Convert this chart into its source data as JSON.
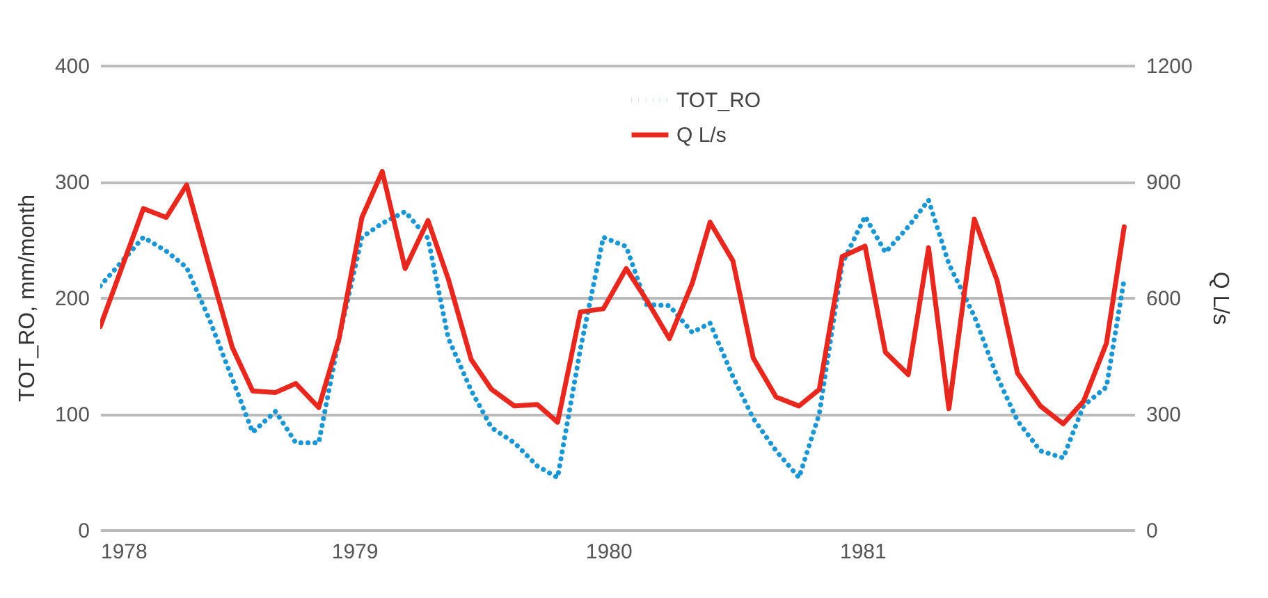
{
  "chart_data": {
    "type": "line",
    "xlim": [
      1978,
      1982.07
    ],
    "xticks": [
      1978,
      1979,
      1980,
      1981
    ],
    "ylim": [
      0,
      400
    ],
    "yticks": [
      0,
      100,
      200,
      300,
      400
    ],
    "y2lim": [
      0,
      1200
    ],
    "y2ticks": [
      0,
      300,
      600,
      900,
      1200
    ],
    "ylabel": "TOT_RO, mm/month",
    "y2label": "Q L/s",
    "grid": "y",
    "legend": "top",
    "series": [
      {
        "name": "TOT_RO",
        "color": "#1a96d4",
        "line_style": "dotted",
        "x": [
          1978.0,
          1978.17,
          1978.26,
          1978.34,
          1978.43,
          1978.52,
          1978.6,
          1978.69,
          1978.77,
          1978.86,
          1978.94,
          1979.03,
          1979.11,
          1979.2,
          1979.29,
          1979.37,
          1979.46,
          1979.54,
          1979.63,
          1979.72,
          1979.8,
          1979.89,
          1979.98,
          1980.07,
          1980.15,
          1980.24,
          1980.33,
          1980.4,
          1980.49,
          1980.57,
          1980.66,
          1980.75,
          1980.83,
          1980.92,
          1981.01,
          1981.09,
          1981.18,
          1981.26,
          1981.34,
          1981.44,
          1981.53,
          1981.61,
          1981.7,
          1981.79,
          1981.87,
          1981.96,
          1982.03
        ],
        "values": [
          210,
          252,
          240,
          226,
          181,
          130,
          84,
          102,
          75,
          75,
          165,
          252,
          264,
          274,
          251,
          165,
          120,
          88,
          75,
          55,
          45,
          156,
          252,
          244,
          194,
          193,
          170,
          178,
          132,
          96,
          68,
          45,
          100,
          229,
          270,
          239,
          261,
          284,
          229,
          184,
          132,
          94,
          68,
          62,
          107,
          123,
          216
        ]
      },
      {
        "name": "Q L/s",
        "color": "#e8281e",
        "line_style": "solid",
        "axis": "y2",
        "x": [
          1978.0,
          1978.17,
          1978.26,
          1978.34,
          1978.43,
          1978.52,
          1978.6,
          1978.69,
          1978.77,
          1978.86,
          1978.94,
          1979.03,
          1979.11,
          1979.2,
          1979.29,
          1979.37,
          1979.46,
          1979.54,
          1979.63,
          1979.72,
          1979.8,
          1979.89,
          1979.98,
          1980.07,
          1980.15,
          1980.24,
          1980.33,
          1980.4,
          1980.49,
          1980.57,
          1980.66,
          1980.75,
          1980.83,
          1980.92,
          1981.01,
          1981.09,
          1981.18,
          1981.26,
          1981.34,
          1981.44,
          1981.53,
          1981.61,
          1981.7,
          1981.79,
          1981.87,
          1981.96,
          1982.03
        ],
        "values": [
          525,
          830,
          807,
          891,
          679,
          471,
          359,
          355,
          378,
          316,
          494,
          807,
          926,
          675,
          799,
          648,
          440,
          363,
          320,
          324,
          278,
          563,
          571,
          675,
          594,
          494,
          637,
          795,
          695,
          444,
          343,
          320,
          363,
          706,
          733,
          459,
          401,
          729,
          313,
          803,
          644,
          405,
          320,
          274,
          332,
          482,
          783
        ]
      }
    ]
  }
}
